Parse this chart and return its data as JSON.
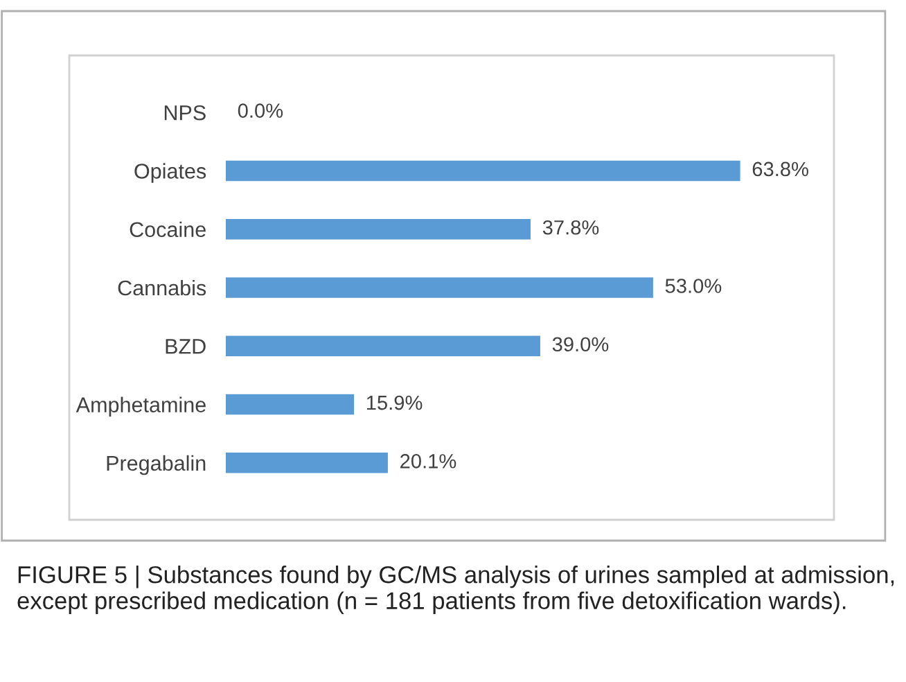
{
  "chart_data": {
    "type": "bar",
    "orientation": "horizontal",
    "categories": [
      "NPS",
      "Opiates",
      "Cocaine",
      "Cannabis",
      "BZD",
      "Amphetamine",
      "Pregabalin"
    ],
    "values": [
      0.0,
      63.8,
      37.8,
      53.0,
      39.0,
      15.9,
      20.1
    ],
    "value_labels": [
      "0.0%",
      "63.8%",
      "37.8%",
      "53.0%",
      "39.0%",
      "15.9%",
      "20.1%"
    ],
    "color": "#5b9bd5",
    "grid": false,
    "legend": false,
    "tick_labels": "y",
    "annotations": [
      "FIGURE 5 | Substances found by GC/MS analysis of urines sampled at admission, except prescribed medication (n = 181 patients from five detoxification wards)."
    ]
  }
}
